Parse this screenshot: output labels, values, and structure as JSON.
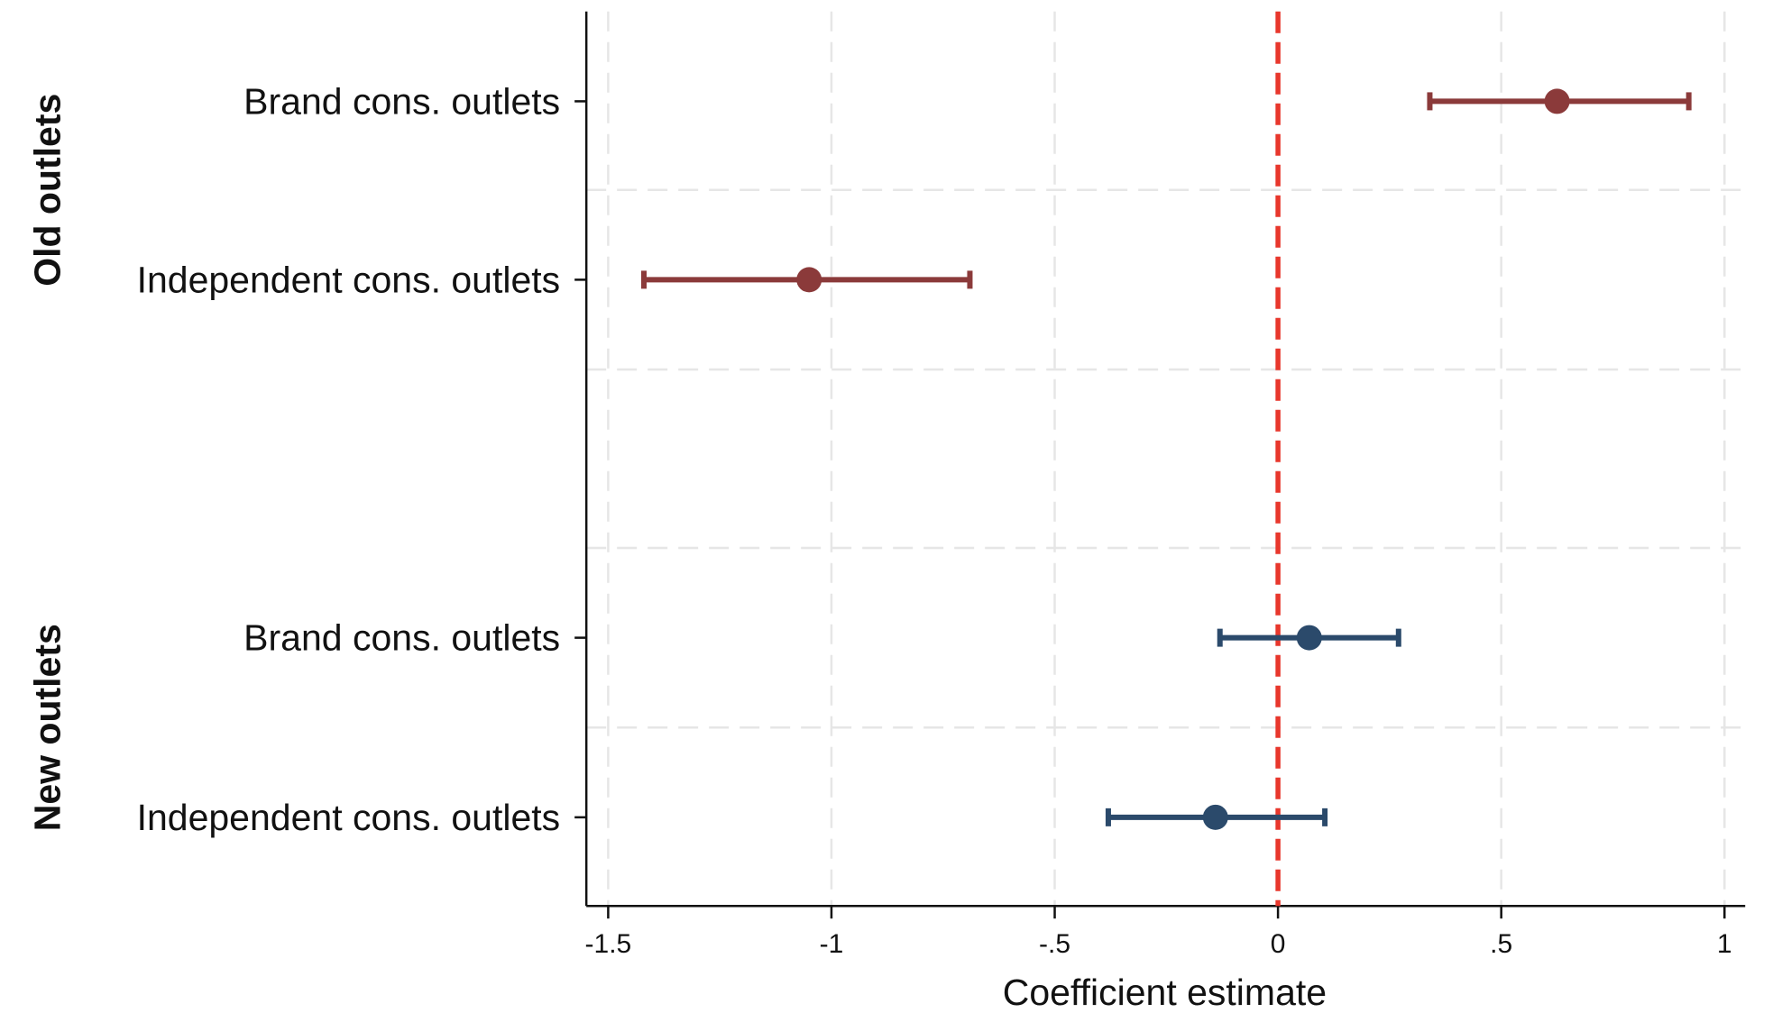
{
  "chart_data": {
    "type": "scatter",
    "subtype": "coefficient-plot-with-confidence-intervals",
    "orientation": "horizontal",
    "xlabel": "Coefficient estimate",
    "xlim": [
      -1.55,
      1.05
    ],
    "xticks": [
      -1.5,
      -1,
      -0.5,
      0,
      0.5,
      1
    ],
    "xtick_labels": [
      "-1.5",
      "-1",
      "-.5",
      "0",
      ".5",
      "1"
    ],
    "reference_line": {
      "x": 0,
      "style": "dashed",
      "color": "#e8372c"
    },
    "grid": true,
    "groups": [
      {
        "name": "Old outlets",
        "color": "#8b3a3a",
        "items": [
          {
            "label": "Brand cons. outlets",
            "estimate": 0.625,
            "ci_low": 0.34,
            "ci_high": 0.92
          },
          {
            "label": "Independent cons. outlets",
            "estimate": -1.05,
            "ci_low": -1.42,
            "ci_high": -0.69
          }
        ]
      },
      {
        "name": "New outlets",
        "color": "#2b4a6b",
        "items": [
          {
            "label": "Brand cons. outlets",
            "estimate": 0.07,
            "ci_low": -0.13,
            "ci_high": 0.27
          },
          {
            "label": "Independent cons. outlets",
            "estimate": -0.14,
            "ci_low": -0.38,
            "ci_high": 0.105
          }
        ]
      }
    ]
  }
}
